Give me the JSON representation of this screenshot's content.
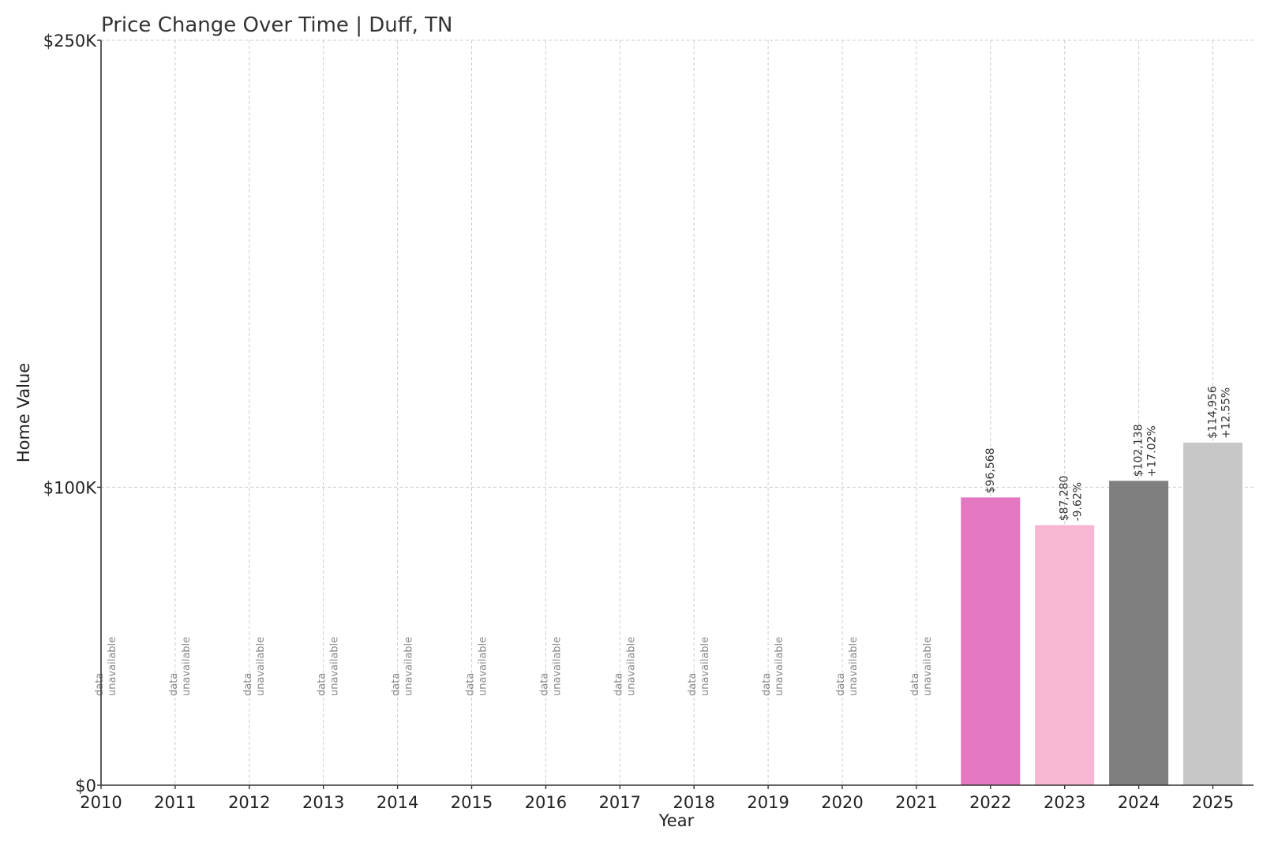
{
  "chart_data": {
    "type": "bar",
    "title": "Price Change Over Time | Duff, TN",
    "xlabel": "Year",
    "ylabel": "Home Value",
    "categories": [
      "2010",
      "2011",
      "2012",
      "2013",
      "2014",
      "2015",
      "2016",
      "2017",
      "2018",
      "2019",
      "2020",
      "2021",
      "2022",
      "2023",
      "2024",
      "2025"
    ],
    "values": [
      null,
      null,
      null,
      null,
      null,
      null,
      null,
      null,
      null,
      null,
      null,
      null,
      96568,
      87280,
      102138,
      114956
    ],
    "value_labels": [
      "",
      "",
      "",
      "",
      "",
      "",
      "",
      "",
      "",
      "",
      "",
      "",
      "$96,568",
      "$87,280",
      "$102,138",
      "$114,956"
    ],
    "change_labels": [
      "",
      "",
      "",
      "",
      "",
      "",
      "",
      "",
      "",
      "",
      "",
      "",
      "",
      "-9.62%",
      "+17.02%",
      "+12.55%"
    ],
    "missing_label": [
      "data",
      "unavailable"
    ],
    "bar_colors": [
      "#e377c2",
      "#e377c2",
      "#e377c2",
      "#e377c2",
      "#e377c2",
      "#e377c2",
      "#e377c2",
      "#e377c2",
      "#e377c2",
      "#e377c2",
      "#e377c2",
      "#e377c2",
      "#e377c2",
      "#f7b6d2",
      "#7f7f7f",
      "#c7c7c7"
    ],
    "ylim": [
      0,
      250000
    ],
    "yticks": [
      0,
      100000,
      250000
    ],
    "ytick_labels": [
      "$0",
      "$100K",
      "$250K"
    ],
    "grid": true
  }
}
